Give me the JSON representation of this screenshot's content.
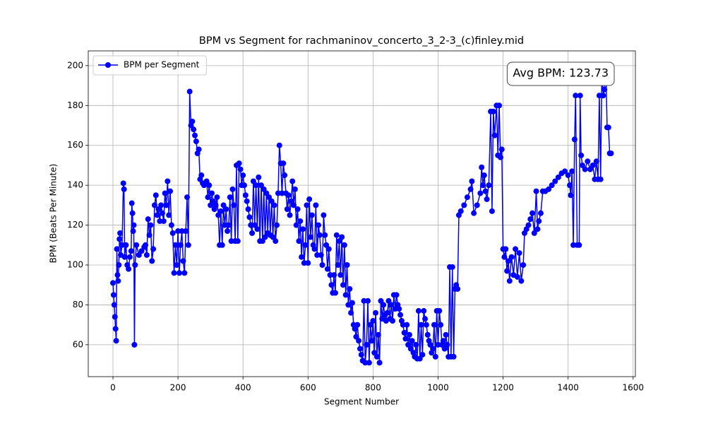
{
  "chart_data": {
    "type": "line",
    "title": "BPM vs Segment for rachmaninov_concerto_3_2-3_(c)finley.mid",
    "xlabel": "Segment Number",
    "ylabel": "BPM (Beats Per Minute)",
    "annotation": "Avg BPM: 123.73",
    "legend": "upper left",
    "grid": true,
    "xlim": [
      -76,
      1607
    ],
    "ylim": [
      44,
      207.4
    ],
    "xticks": [
      0,
      200,
      400,
      600,
      800,
      1000,
      1200,
      1400,
      1600
    ],
    "yticks": [
      60,
      80,
      100,
      120,
      140,
      160,
      180,
      200
    ],
    "x": [
      0,
      2,
      4,
      6,
      8,
      10,
      12,
      14,
      16,
      18,
      20,
      22,
      24,
      28,
      32,
      34,
      36,
      40,
      44,
      48,
      52,
      56,
      58,
      60,
      62,
      64,
      66,
      68,
      72,
      80,
      88,
      96,
      100,
      104,
      108,
      112,
      116,
      120,
      124,
      128,
      132,
      136,
      140,
      144,
      148,
      152,
      156,
      160,
      164,
      168,
      172,
      176,
      180,
      184,
      188,
      192,
      196,
      200,
      204,
      208,
      212,
      216,
      220,
      224,
      228,
      232,
      236,
      240,
      244,
      248,
      252,
      256,
      260,
      264,
      268,
      272,
      276,
      280,
      288,
      292,
      296,
      300,
      304,
      308,
      312,
      316,
      320,
      324,
      328,
      332,
      336,
      340,
      344,
      348,
      352,
      356,
      360,
      364,
      368,
      372,
      376,
      380,
      384,
      388,
      392,
      396,
      400,
      404,
      408,
      412,
      416,
      420,
      424,
      428,
      432,
      436,
      440,
      444,
      448,
      452,
      456,
      460,
      464,
      468,
      472,
      476,
      480,
      484,
      488,
      492,
      496,
      500,
      504,
      508,
      512,
      516,
      520,
      524,
      528,
      532,
      536,
      540,
      544,
      548,
      552,
      556,
      560,
      564,
      568,
      572,
      576,
      580,
      584,
      588,
      592,
      596,
      600,
      604,
      608,
      612,
      616,
      620,
      624,
      628,
      632,
      636,
      640,
      644,
      648,
      652,
      656,
      660,
      664,
      668,
      672,
      676,
      680,
      684,
      688,
      692,
      696,
      700,
      704,
      708,
      712,
      716,
      720,
      724,
      728,
      732,
      736,
      740,
      744,
      748,
      752,
      756,
      760,
      764,
      768,
      772,
      776,
      780,
      784,
      788,
      792,
      796,
      800,
      804,
      808,
      812,
      816,
      820,
      824,
      828,
      832,
      836,
      840,
      844,
      848,
      852,
      856,
      860,
      864,
      868,
      872,
      876,
      880,
      884,
      888,
      892,
      896,
      900,
      904,
      908,
      912,
      916,
      920,
      924,
      928,
      932,
      936,
      940,
      944,
      948,
      952,
      956,
      960,
      964,
      968,
      972,
      976,
      980,
      984,
      988,
      992,
      996,
      1000,
      1004,
      1008,
      1012,
      1016,
      1020,
      1024,
      1028,
      1032,
      1036,
      1040,
      1044,
      1048,
      1052,
      1056,
      1060,
      1064,
      1070,
      1080,
      1090,
      1100,
      1104,
      1110,
      1120,
      1130,
      1134,
      1138,
      1142,
      1146,
      1150,
      1156,
      1162,
      1166,
      1170,
      1174,
      1180,
      1184,
      1188,
      1192,
      1196,
      1200,
      1204,
      1208,
      1212,
      1216,
      1220,
      1226,
      1232,
      1238,
      1244,
      1250,
      1256,
      1262,
      1266,
      1272,
      1278,
      1284,
      1290,
      1296,
      1302,
      1306,
      1310,
      1316,
      1322,
      1330,
      1340,
      1350,
      1360,
      1370,
      1380,
      1390,
      1400,
      1405,
      1408,
      1412,
      1416,
      1420,
      1423,
      1428,
      1434,
      1437,
      1440,
      1444,
      1452,
      1460,
      1468,
      1476,
      1482,
      1487,
      1492,
      1496,
      1500,
      1504,
      1508,
      1512,
      1516,
      1520,
      1524,
      1528,
      1532
    ],
    "series": [
      {
        "name": "BPM per Segment",
        "color": "#0000ff",
        "values": [
          91,
          85,
          80,
          74,
          68,
          62,
          108,
          95,
          92,
          100,
          113,
          116,
          105,
          110,
          141,
          138,
          104,
          110,
          100,
          98,
          104,
          107,
          131,
          126,
          117,
          120,
          60,
          100,
          110,
          105,
          107,
          109,
          110,
          105,
          123,
          115,
          120,
          102,
          108,
          130,
          135,
          125,
          128,
          122,
          130,
          126,
          122,
          136,
          130,
          142,
          125,
          137,
          120,
          116,
          96,
          110,
          100,
          117,
          96,
          110,
          117,
          102,
          96,
          117,
          134,
          110,
          187,
          170,
          172,
          168,
          165,
          162,
          156,
          158,
          143,
          145,
          141,
          140,
          142,
          134,
          140,
          130,
          136,
          132,
          128,
          130,
          134,
          125,
          110,
          127,
          110,
          130,
          120,
          128,
          117,
          120,
          134,
          112,
          138,
          130,
          112,
          150,
          112,
          151,
          148,
          140,
          145,
          140,
          135,
          132,
          128,
          124,
          120,
          116,
          142,
          120,
          140,
          118,
          144,
          112,
          140,
          112,
          138,
          114,
          136,
          116,
          134,
          115,
          132,
          114,
          130,
          112,
          120,
          136,
          160,
          151,
          136,
          151,
          145,
          136,
          128,
          135,
          125,
          132,
          142,
          130,
          138,
          120,
          128,
          112,
          122,
          104,
          118,
          101,
          110,
          130,
          101,
          133,
          114,
          125,
          110,
          108,
          130,
          105,
          120,
          115,
          105,
          100,
          125,
          115,
          110,
          98,
          108,
          95,
          90,
          86,
          95,
          86,
          115,
          100,
          112,
          95,
          114,
          90,
          110,
          85,
          100,
          80,
          88,
          76,
          81,
          70,
          68,
          64,
          70,
          62,
          58,
          55,
          52,
          82,
          51,
          60,
          82,
          51,
          70,
          62,
          72,
          56,
          76,
          54,
          65,
          51,
          82,
          73,
          80,
          75,
          72,
          76,
          82,
          73,
          80,
          72,
          85,
          78,
          85,
          80,
          78,
          75,
          72,
          70,
          66,
          63,
          70,
          60,
          65,
          58,
          62,
          56,
          54,
          60,
          53,
          77,
          53,
          70,
          55,
          77,
          73,
          70,
          65,
          62,
          60,
          56,
          58,
          70,
          54,
          77,
          60,
          77,
          70,
          60,
          62,
          58,
          65,
          60,
          54,
          99,
          54,
          99,
          54,
          88,
          90,
          88,
          125,
          127,
          130,
          134,
          138,
          142,
          126,
          130,
          136,
          149,
          140,
          145,
          137,
          133,
          140,
          177,
          127,
          177,
          165,
          180,
          155,
          180,
          154,
          158,
          108,
          104,
          108,
          97,
          102,
          92,
          104,
          95,
          108,
          94,
          106,
          92,
          100,
          116,
          118,
          120,
          123,
          126,
          116,
          137,
          118,
          122,
          126,
          137,
          137,
          138,
          140,
          142,
          144,
          146,
          147,
          145,
          140,
          135,
          147,
          110,
          163,
          185,
          110,
          110,
          185,
          155,
          150,
          148,
          152,
          148,
          150,
          143,
          152,
          143,
          185,
          143,
          200,
          185,
          188,
          200,
          169,
          169,
          156,
          156
        ]
      }
    ]
  }
}
